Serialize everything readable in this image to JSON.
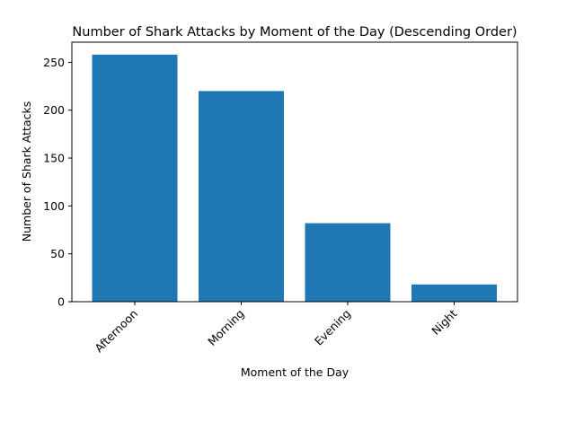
{
  "chart_data": {
    "type": "bar",
    "title": "Number of Shark Attacks by Moment of the Day (Descending Order)",
    "xlabel": "Moment of the Day",
    "ylabel": "Number of Shark Attacks",
    "categories": [
      "Afternoon",
      "Morning",
      "Evening",
      "Night"
    ],
    "values": [
      258,
      220,
      82,
      18
    ],
    "ylim": [
      0,
      271
    ],
    "yticks": [
      0,
      50,
      100,
      150,
      200,
      250
    ],
    "bar_color": "#1f77b4",
    "grid": false,
    "legend": "none"
  }
}
